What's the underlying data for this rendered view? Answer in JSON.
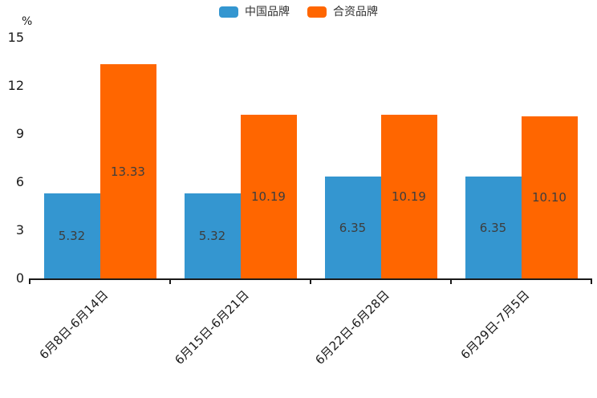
{
  "chart_data": {
    "type": "bar",
    "title": "",
    "categories": [
      "6月8日-6月14日",
      "6月15日-6月21日",
      "6月22日-6月28日",
      "6月29日-7月5日"
    ],
    "series": [
      {
        "name": "中国品牌",
        "color": "#3496D0",
        "values": [
          5.32,
          5.32,
          6.35,
          6.35
        ]
      },
      {
        "name": "合资品牌",
        "color": "#FF6600",
        "values": [
          13.33,
          10.19,
          10.19,
          10.1
        ]
      }
    ],
    "xlabel": "",
    "ylabel": "%",
    "ylim": [
      0,
      15
    ],
    "yticks": [
      0,
      3,
      6,
      9,
      12,
      15
    ],
    "grid": false,
    "legend_position": "top-center",
    "value_label_position": "inside-center",
    "value_label_decimals": 2,
    "axis_color": "#1a1a1a",
    "value_label_color": "#3d3d3d"
  }
}
